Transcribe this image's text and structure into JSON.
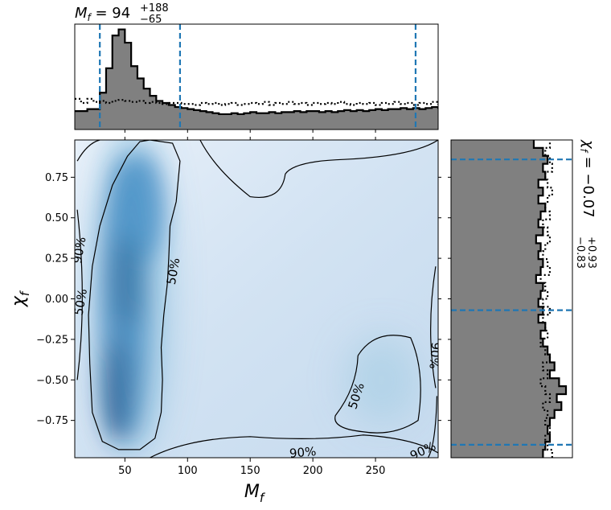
{
  "chart_data": [
    {
      "type": "heatmap",
      "panel": "joint",
      "xlabel": "M_f",
      "ylabel": "χ_f",
      "xlim": [
        10,
        300
      ],
      "ylim": [
        -0.98,
        0.98
      ],
      "xticks": [
        50,
        100,
        150,
        200,
        250
      ],
      "yticks": [
        0.75,
        0.5,
        0.25,
        0.0,
        -0.25,
        -0.5,
        -0.75
      ],
      "xtick_labels": [
        "50",
        "100",
        "150",
        "200",
        "250"
      ],
      "ytick_labels": [
        "0.75",
        "0.50",
        "0.25",
        "0.00",
        "−0.25",
        "−0.50",
        "−0.75"
      ],
      "colormap": "Blues",
      "density_peaks": [
        {
          "x": 52,
          "y": 0.1,
          "weight": 1.0
        },
        {
          "x": 45,
          "y": -0.55,
          "weight": 1.0
        },
        {
          "x": 60,
          "y": 0.55,
          "weight": 0.7
        },
        {
          "x": 255,
          "y": -0.5,
          "weight": 0.12
        }
      ],
      "contour_labels": [
        "90%",
        "50%",
        "50%",
        "50%",
        "90%",
        "90%",
        "90%"
      ],
      "contour_levels": [
        "50%",
        "90%"
      ]
    },
    {
      "type": "bar",
      "panel": "marginal-x",
      "title_main": "M_f = 94",
      "title_sup": "+188",
      "title_sub": "−65",
      "xlim": [
        10,
        300
      ],
      "bin_edges_start": 10,
      "bin_width": 5,
      "posterior": [
        0.18,
        0.18,
        0.2,
        0.2,
        0.36,
        0.6,
        0.92,
        0.98,
        0.85,
        0.62,
        0.5,
        0.4,
        0.33,
        0.28,
        0.26,
        0.24,
        0.22,
        0.21,
        0.2,
        0.19,
        0.18,
        0.17,
        0.16,
        0.15,
        0.15,
        0.16,
        0.15,
        0.16,
        0.17,
        0.16,
        0.16,
        0.17,
        0.16,
        0.17,
        0.17,
        0.18,
        0.17,
        0.18,
        0.18,
        0.17,
        0.18,
        0.17,
        0.18,
        0.19,
        0.18,
        0.19,
        0.18,
        0.19,
        0.2,
        0.19,
        0.2,
        0.2,
        0.21,
        0.2,
        0.21,
        0.2,
        0.21,
        0.22,
        0.21,
        0.22
      ],
      "prior": [
        0.3,
        0.26,
        0.3,
        0.27,
        0.28,
        0.26,
        0.28,
        0.29,
        0.28,
        0.27,
        0.28,
        0.26,
        0.27,
        0.26,
        0.25,
        0.26,
        0.26,
        0.25,
        0.25,
        0.24,
        0.26,
        0.25,
        0.26,
        0.24,
        0.25,
        0.26,
        0.24,
        0.25,
        0.26,
        0.25,
        0.27,
        0.24,
        0.26,
        0.25,
        0.27,
        0.25,
        0.26,
        0.24,
        0.26,
        0.25,
        0.26,
        0.25,
        0.27,
        0.25,
        0.24,
        0.26,
        0.25,
        0.26,
        0.24,
        0.26,
        0.25,
        0.27,
        0.25,
        0.26,
        0.24,
        0.26,
        0.25,
        0.27,
        0.25,
        0.26
      ],
      "vlines": [
        30,
        94,
        282
      ]
    },
    {
      "type": "bar",
      "panel": "marginal-y",
      "orientation": "horizontal",
      "title_main": "χ_f = −0.07",
      "title_sup": "+0.93",
      "title_sub": "−0.83",
      "ylim": [
        -0.98,
        0.98
      ],
      "bin_edges_start": -0.98,
      "bin_width": 0.049,
      "posterior": [
        0.8,
        0.82,
        0.86,
        0.84,
        0.86,
        0.9,
        0.96,
        0.92,
        1.0,
        0.94,
        0.86,
        0.9,
        0.86,
        0.84,
        0.8,
        0.78,
        0.82,
        0.76,
        0.8,
        0.76,
        0.78,
        0.8,
        0.74,
        0.78,
        0.8,
        0.76,
        0.78,
        0.74,
        0.8,
        0.76,
        0.78,
        0.82,
        0.76,
        0.8,
        0.76,
        0.82,
        0.8,
        0.84,
        0.8,
        0.72
      ],
      "prior": [
        0.88,
        0.84,
        0.82,
        0.86,
        0.82,
        0.84,
        0.8,
        0.86,
        0.82,
        0.78,
        0.84,
        0.8,
        0.86,
        0.82,
        0.78,
        0.84,
        0.82,
        0.8,
        0.86,
        0.8,
        0.84,
        0.82,
        0.78,
        0.86,
        0.84,
        0.8,
        0.82,
        0.86,
        0.84,
        0.8,
        0.86,
        0.82,
        0.84,
        0.88,
        0.84,
        0.82,
        0.88,
        0.86,
        0.82,
        0.86
      ],
      "hlines": [
        0.86,
        -0.07,
        -0.9
      ]
    }
  ]
}
